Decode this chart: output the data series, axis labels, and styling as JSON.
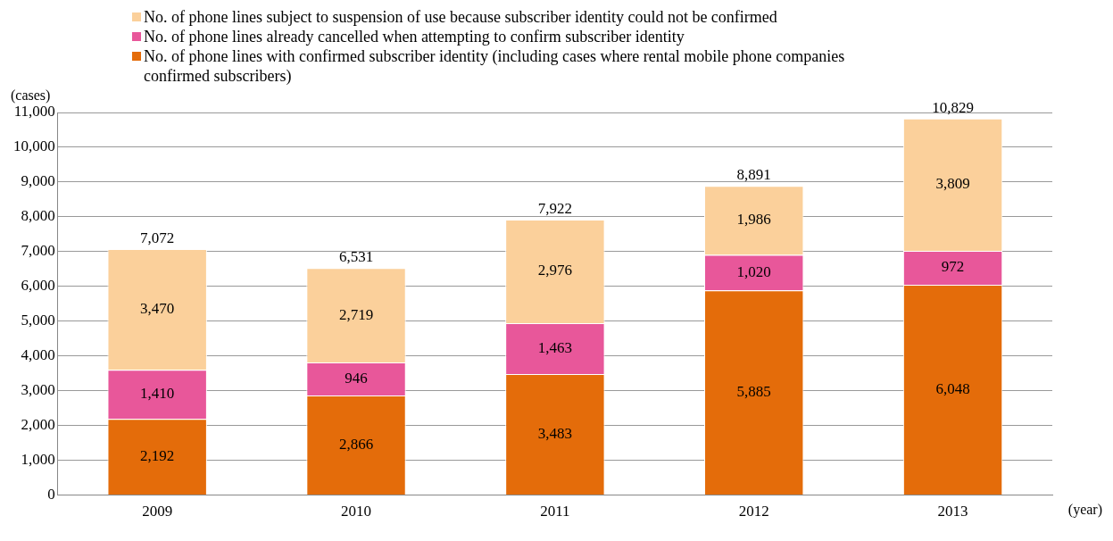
{
  "chart_data": {
    "type": "bar",
    "stacked": true,
    "categories": [
      "2009",
      "2010",
      "2011",
      "2012",
      "2013"
    ],
    "series": [
      {
        "name": "No. of phone lines with confirmed subscriber identity (including cases where rental mobile phone companies confirmed subscribers)",
        "color": "#e46c0a",
        "values": [
          2192,
          2866,
          3483,
          5885,
          6048
        ],
        "value_labels": [
          "2,192",
          "2,866",
          "3,483",
          "5,885",
          "6,048"
        ]
      },
      {
        "name": "No. of phone lines already cancelled when attempting to confirm subscriber identity",
        "color": "#e8579a",
        "values": [
          1410,
          946,
          1463,
          1020,
          972
        ],
        "value_labels": [
          "1,410",
          "946",
          "1,463",
          "1,020",
          "972"
        ]
      },
      {
        "name": "No. of phone lines subject to suspension of use because subscriber identity could not be confirmed",
        "color": "#fbd09b",
        "values": [
          3470,
          2719,
          2976,
          1986,
          3809
        ],
        "value_labels": [
          "3,470",
          "2,719",
          "2,976",
          "1,986",
          "3,809"
        ]
      }
    ],
    "totals": [
      "7,072",
      "6,531",
      "7,922",
      "8,891",
      "10,829"
    ],
    "ylabel": "(cases)",
    "xlabel": "(year)",
    "ylim": [
      0,
      11000
    ],
    "yticks": [
      0,
      {
        "value": 1000,
        "label": "1,000"
      },
      {
        "value": 2000,
        "label": "2,000"
      },
      {
        "value": 3000,
        "label": "3,000"
      },
      {
        "value": 4000,
        "label": "4,000"
      },
      {
        "value": 5000,
        "label": "5,000"
      },
      {
        "value": 6000,
        "label": "6,000"
      },
      {
        "value": 7000,
        "label": "7,000"
      },
      {
        "value": 8000,
        "label": "8,000"
      },
      {
        "value": 9000,
        "label": "9,000"
      },
      {
        "value": 10000,
        "label": "10,000"
      },
      {
        "value": 11000,
        "label": "11,000"
      }
    ],
    "grid": "y",
    "legend": "top"
  }
}
